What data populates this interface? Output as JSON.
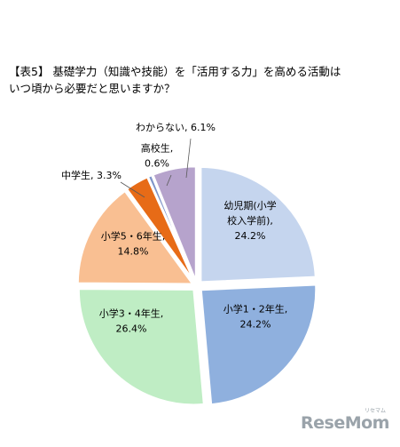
{
  "chart_data": {
    "type": "pie",
    "title_lines": [
      "【表5】 基礎学力（知識や技能）を「活用する力」を高める活動は",
      "いつ頃から必要だと思いますか？"
    ],
    "slices": [
      {
        "label_lines": [
          "幼児期(小学",
          "校入学前),",
          "24.2%"
        ],
        "value": 24.2,
        "color": "#c5d5ee"
      },
      {
        "label_lines": [
          "小学1・2年生,",
          "24.2%"
        ],
        "value": 24.2,
        "color": "#8fb0de"
      },
      {
        "label_lines": [
          "小学3・4年生,",
          "26.4%"
        ],
        "value": 26.4,
        "color": "#bfedc4"
      },
      {
        "label_lines": [
          "小学5・6年生,",
          "14.8%"
        ],
        "value": 14.8,
        "color": "#f9bf92"
      },
      {
        "label_lines": [
          "中学生, 3.3%"
        ],
        "value": 3.3,
        "color": "#e76b17"
      },
      {
        "label_lines": [
          "高校生,",
          "0.6%"
        ],
        "value": 0.6,
        "color": "#7f95c9"
      },
      {
        "label_lines": [
          "わからない, 6.1%"
        ],
        "value": 6.1,
        "color": "#b6a3cc"
      }
    ]
  },
  "logo": {
    "text": "ReseMom",
    "subtext": "リセマム"
  }
}
